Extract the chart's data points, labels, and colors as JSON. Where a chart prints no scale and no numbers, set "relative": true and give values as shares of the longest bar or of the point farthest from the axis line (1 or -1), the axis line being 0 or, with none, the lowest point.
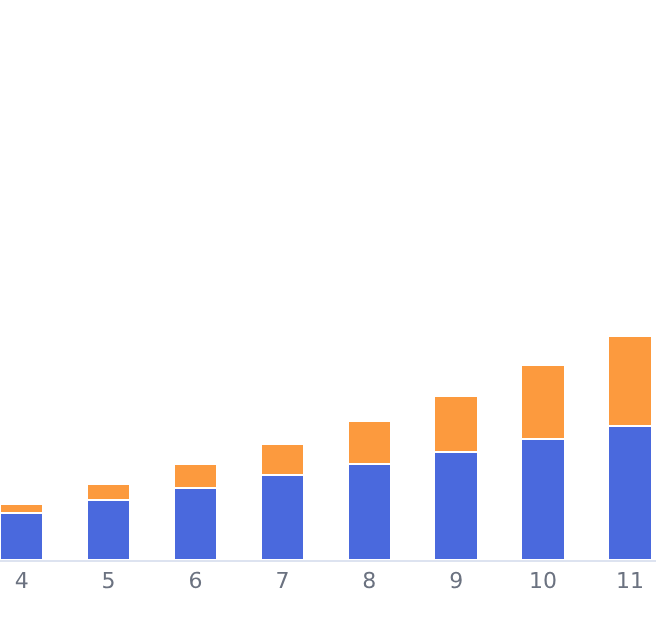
{
  "chart_data": {
    "type": "bar",
    "stacked": true,
    "relative": true,
    "legend": false,
    "categories": [
      "4",
      "5",
      "6",
      "7",
      "8",
      "9",
      "10",
      "11"
    ],
    "series": [
      {
        "color": "#4a69dd",
        "values": [
          0.21,
          0.27,
          0.32,
          0.38,
          0.43,
          0.48,
          0.54,
          0.6
        ]
      },
      {
        "color": "#fc9a3e",
        "values": [
          0.04,
          0.07,
          0.11,
          0.14,
          0.19,
          0.25,
          0.33,
          0.4
        ]
      }
    ]
  }
}
